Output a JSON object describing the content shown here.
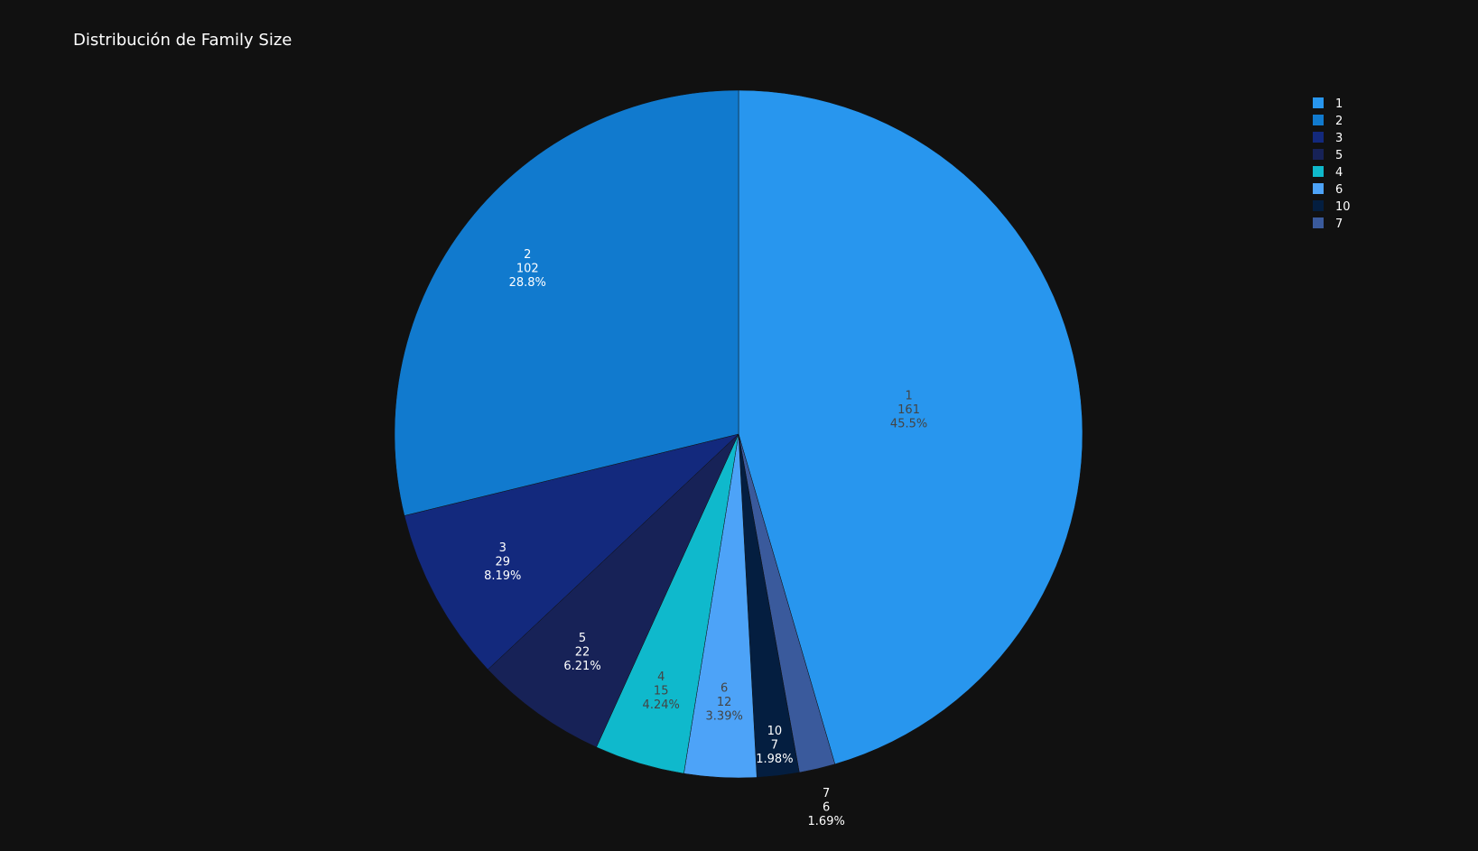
{
  "chart_data": {
    "type": "pie",
    "title": "Distribución de Family Size",
    "slices": [
      {
        "label": "1",
        "value": 161,
        "percent": "45.5%",
        "color": "#2896EE",
        "text_color": "#444444"
      },
      {
        "label": "7",
        "value": 6,
        "percent": "1.69%",
        "color": "#3A5A9C",
        "text_color": "#ffffff"
      },
      {
        "label": "10",
        "value": 7,
        "percent": "1.98%",
        "color": "#041E40",
        "text_color": "#ffffff"
      },
      {
        "label": "6",
        "value": 12,
        "percent": "3.39%",
        "color": "#4DA3F8",
        "text_color": "#444444"
      },
      {
        "label": "4",
        "value": 15,
        "percent": "4.24%",
        "color": "#0FB9CC",
        "text_color": "#444444"
      },
      {
        "label": "5",
        "value": 22,
        "percent": "6.21%",
        "color": "#172257",
        "text_color": "#ffffff"
      },
      {
        "label": "3",
        "value": 29,
        "percent": "8.19%",
        "color": "#13297D",
        "text_color": "#ffffff"
      },
      {
        "label": "2",
        "value": 102,
        "percent": "28.8%",
        "color": "#117ACE",
        "text_color": "#ffffff"
      }
    ],
    "legend": {
      "placement": "top-right",
      "items": [
        "1",
        "2",
        "3",
        "5",
        "4",
        "6",
        "10",
        "7"
      ]
    },
    "direction": "clockwise",
    "start": "12 o'clock",
    "background": "#111111"
  }
}
